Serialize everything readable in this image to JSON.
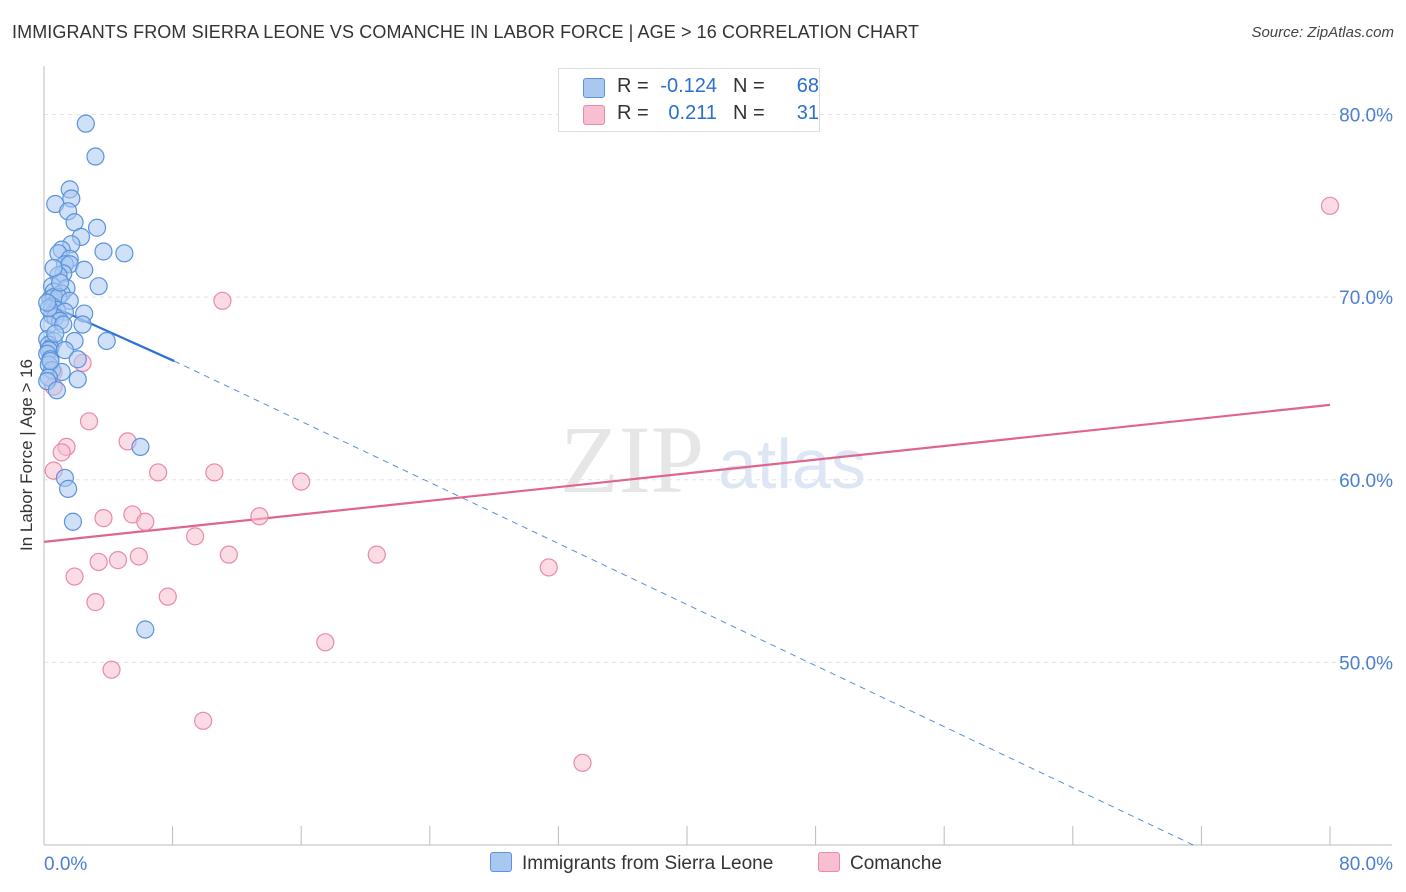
{
  "title": "IMMIGRANTS FROM SIERRA LEONE VS COMANCHE IN LABOR FORCE | AGE > 16 CORRELATION CHART",
  "source": "Source: ZipAtlas.com",
  "watermark": {
    "zip": "ZIP",
    "atlas": "atlas"
  },
  "legend": {
    "r_label": "R =",
    "n_label": "N =",
    "series": [
      {
        "name": "Immigrants from Sierra Leone",
        "r": "-0.124",
        "n": "68"
      },
      {
        "name": "Comanche",
        "r": "0.211",
        "n": "31"
      }
    ]
  },
  "colors": {
    "blue_fill": "#a9c8f0",
    "blue_stroke": "#5b93dc",
    "blue_line": "#2f72d4",
    "pink_fill": "#f7bfd0",
    "pink_stroke": "#e88aa8",
    "pink_line": "#e0658e",
    "axis_text": "#4a7fd4",
    "grid": "#e3e3e3"
  },
  "chart_data": {
    "type": "scatter",
    "title": "IMMIGRANTS FROM SIERRA LEONE VS COMANCHE IN LABOR FORCE | AGE > 16 CORRELATION CHART",
    "xlabel": "",
    "ylabel": "In Labor Force | Age > 16",
    "xlim": [
      0,
      80
    ],
    "ylim": [
      40,
      82
    ],
    "x_tick_labels": [
      "0.0%",
      "80.0%"
    ],
    "y_ticks": [
      50,
      60,
      70,
      80
    ],
    "y_tick_labels": [
      "50.0%",
      "60.0%",
      "70.0%",
      "80.0%"
    ],
    "grid": true,
    "series": [
      {
        "name": "Immigrants from Sierra Leone",
        "color": "#5b93dc",
        "points": [
          [
            2.6,
            79.5
          ],
          [
            3.2,
            77.7
          ],
          [
            1.6,
            75.9
          ],
          [
            1.7,
            75.4
          ],
          [
            0.7,
            75.1
          ],
          [
            1.5,
            74.7
          ],
          [
            1.9,
            74.1
          ],
          [
            3.3,
            73.8
          ],
          [
            2.3,
            73.3
          ],
          [
            1.7,
            72.9
          ],
          [
            1.1,
            72.6
          ],
          [
            3.7,
            72.5
          ],
          [
            5.0,
            72.4
          ],
          [
            0.9,
            72.4
          ],
          [
            1.6,
            72.1
          ],
          [
            1.3,
            71.8
          ],
          [
            1.6,
            71.8
          ],
          [
            2.5,
            71.5
          ],
          [
            1.2,
            71.3
          ],
          [
            0.9,
            71.2
          ],
          [
            3.4,
            70.6
          ],
          [
            0.5,
            70.6
          ],
          [
            1.4,
            70.5
          ],
          [
            0.6,
            70.3
          ],
          [
            1.1,
            70.2
          ],
          [
            0.4,
            69.9
          ],
          [
            0.6,
            70.0
          ],
          [
            0.9,
            70.0
          ],
          [
            1.6,
            69.8
          ],
          [
            0.5,
            69.5
          ],
          [
            0.8,
            69.3
          ],
          [
            1.3,
            69.2
          ],
          [
            2.5,
            69.1
          ],
          [
            0.5,
            69.0
          ],
          [
            0.7,
            68.9
          ],
          [
            1.0,
            68.7
          ],
          [
            2.4,
            68.5
          ],
          [
            0.3,
            68.5
          ],
          [
            1.2,
            68.5
          ],
          [
            0.2,
            67.7
          ],
          [
            0.6,
            67.6
          ],
          [
            1.9,
            67.6
          ],
          [
            3.9,
            67.6
          ],
          [
            0.3,
            67.4
          ],
          [
            0.4,
            67.2
          ],
          [
            0.3,
            67.1
          ],
          [
            1.3,
            67.1
          ],
          [
            0.2,
            66.9
          ],
          [
            0.4,
            66.6
          ],
          [
            2.1,
            66.6
          ],
          [
            0.3,
            66.3
          ],
          [
            0.5,
            66.0
          ],
          [
            1.1,
            65.9
          ],
          [
            0.3,
            65.6
          ],
          [
            2.1,
            65.5
          ],
          [
            0.2,
            65.4
          ],
          [
            0.8,
            64.9
          ],
          [
            6.0,
            61.8
          ],
          [
            1.3,
            60.1
          ],
          [
            1.5,
            59.5
          ],
          [
            1.8,
            57.7
          ],
          [
            6.3,
            51.8
          ],
          [
            0.3,
            69.4
          ],
          [
            0.7,
            68.0
          ],
          [
            0.4,
            66.5
          ],
          [
            1.0,
            70.8
          ],
          [
            0.6,
            71.6
          ],
          [
            0.2,
            69.7
          ]
        ]
      },
      {
        "name": "Comanche",
        "color": "#e88aa8",
        "points": [
          [
            80.0,
            75.0
          ],
          [
            11.1,
            69.8
          ],
          [
            2.4,
            66.4
          ],
          [
            0.6,
            65.9
          ],
          [
            0.6,
            65.1
          ],
          [
            2.8,
            63.2
          ],
          [
            5.2,
            62.1
          ],
          [
            1.4,
            61.8
          ],
          [
            1.1,
            61.5
          ],
          [
            0.6,
            60.5
          ],
          [
            7.1,
            60.4
          ],
          [
            10.6,
            60.4
          ],
          [
            16.0,
            59.9
          ],
          [
            5.5,
            58.1
          ],
          [
            3.7,
            57.9
          ],
          [
            6.3,
            57.7
          ],
          [
            13.4,
            58.0
          ],
          [
            9.4,
            56.9
          ],
          [
            11.5,
            55.9
          ],
          [
            20.7,
            55.9
          ],
          [
            5.9,
            55.8
          ],
          [
            4.6,
            55.6
          ],
          [
            3.4,
            55.5
          ],
          [
            31.4,
            55.2
          ],
          [
            1.9,
            54.7
          ],
          [
            7.7,
            53.6
          ],
          [
            3.2,
            53.3
          ],
          [
            17.5,
            51.1
          ],
          [
            4.2,
            49.6
          ],
          [
            9.9,
            46.8
          ],
          [
            33.5,
            44.5
          ]
        ]
      }
    ],
    "trendlines": [
      {
        "series": "Immigrants from Sierra Leone",
        "solid": [
          [
            0.0,
            69.7
          ],
          [
            8.1,
            66.5
          ]
        ],
        "dashed_to": [
          71.5,
          40.0
        ]
      },
      {
        "series": "Comanche",
        "solid": [
          [
            0.0,
            56.6
          ],
          [
            80.0,
            64.1
          ]
        ]
      }
    ]
  }
}
